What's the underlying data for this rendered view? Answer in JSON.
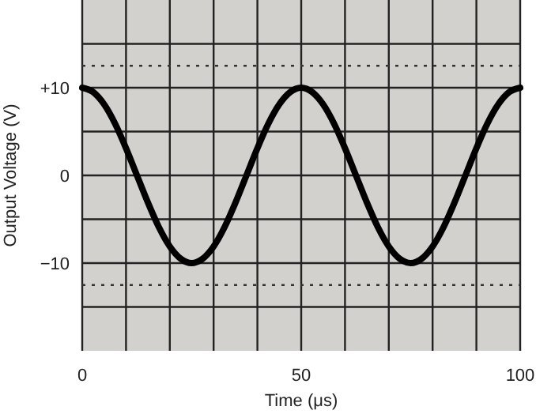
{
  "chart_data": {
    "type": "line",
    "xlabel": "Time (μs)",
    "ylabel": "Output Voltage (V)",
    "x": [
      0,
      2.5,
      5,
      7.5,
      10,
      12.5,
      15,
      17.5,
      20,
      22.5,
      25,
      27.5,
      30,
      32.5,
      35,
      37.5,
      40,
      42.5,
      45,
      47.5,
      50,
      52.5,
      55,
      57.5,
      60,
      62.5,
      65,
      67.5,
      70,
      72.5,
      75,
      77.5,
      80,
      82.5,
      85,
      87.5,
      90,
      92.5,
      95,
      97.5,
      100
    ],
    "series": [
      {
        "color": "#000000",
        "values": [
          10,
          9.5,
          8.1,
          5.9,
          3.1,
          0,
          -3.1,
          -5.9,
          -8.1,
          -9.5,
          -10,
          -9.5,
          -8.1,
          -5.9,
          -3.1,
          0,
          3.1,
          5.9,
          8.1,
          9.5,
          10,
          9.5,
          8.1,
          5.9,
          3.1,
          0,
          -3.1,
          -5.9,
          -8.1,
          -9.5,
          -10,
          -9.5,
          -8.1,
          -5.9,
          -3.1,
          0,
          3.1,
          5.9,
          8.1,
          9.5,
          10
        ]
      }
    ],
    "xlim": [
      0,
      100
    ],
    "ylim": [
      -20,
      20
    ],
    "xticks": [
      0,
      {
        "value": 10,
        "label": null
      },
      {
        "value": 20,
        "label": null
      },
      {
        "value": 30,
        "label": null
      },
      {
        "value": 40,
        "label": null
      },
      50,
      {
        "value": 60,
        "label": null
      },
      {
        "value": 70,
        "label": null
      },
      {
        "value": 80,
        "label": null
      },
      {
        "value": 90,
        "label": null
      },
      100
    ],
    "yticks": [
      {
        "value": -15,
        "label": null
      },
      {
        "value": -10,
        "label": "−10"
      },
      {
        "value": -5,
        "label": null
      },
      0,
      {
        "value": 5,
        "label": null
      },
      {
        "value": 10,
        "label": "+10"
      },
      {
        "value": 15,
        "label": null
      }
    ],
    "ref_lines": [
      {
        "axis": "y",
        "value": 12.5,
        "line_style": "dotted",
        "color": "#333333"
      },
      {
        "axis": "y",
        "value": -12.5,
        "line_style": "dotted",
        "color": "#333333"
      }
    ],
    "grid": true,
    "marker": "none",
    "line_style": "solid"
  }
}
